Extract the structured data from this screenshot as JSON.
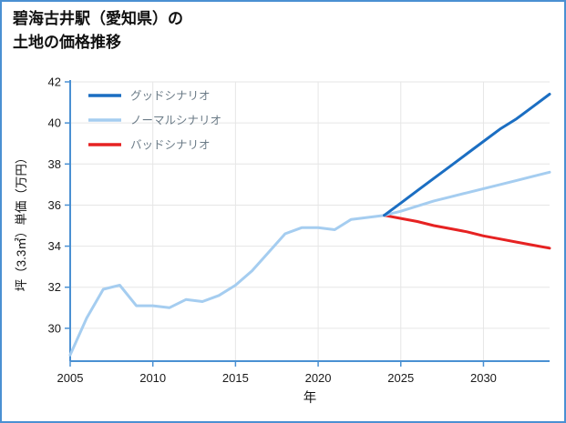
{
  "title": {
    "line1": "碧海古井駅（愛知県）の",
    "line2": "土地の価格推移"
  },
  "chart_data": {
    "type": "line",
    "title": "碧海古井駅（愛知県）の 土地の価格推移",
    "xlabel": "年",
    "ylabel": "坪（3.3㎡）単価（万円）",
    "xlim": [
      2005,
      2034
    ],
    "ylim": [
      28.4,
      42
    ],
    "xticks": [
      2005,
      2010,
      2015,
      2020,
      2025,
      2030
    ],
    "yticks": [
      30,
      32,
      34,
      36,
      38,
      40,
      42
    ],
    "grid": true,
    "legend_position": "upper-left",
    "colors": {
      "good": "#1b6ec2",
      "normal": "#a5cdf0",
      "bad": "#e62222",
      "axis": "#4a90d2",
      "frame": "#4a90d2",
      "grid": "#e6e6e6",
      "tick_label": "#1a1a1a",
      "legend_label": "#6b7b87"
    },
    "series": [
      {
        "id": "history",
        "name": "ノーマルシナリオ（実績）",
        "color_key": "normal",
        "x": [
          2005,
          2006,
          2007,
          2008,
          2009,
          2010,
          2011,
          2012,
          2013,
          2014,
          2015,
          2016,
          2017,
          2018,
          2019,
          2020,
          2021,
          2022,
          2023,
          2024
        ],
        "y": [
          28.7,
          30.5,
          31.9,
          32.1,
          31.1,
          31.1,
          31.0,
          31.4,
          31.3,
          31.6,
          32.1,
          32.8,
          33.7,
          34.6,
          34.9,
          34.9,
          34.8,
          35.3,
          35.4,
          35.5
        ]
      },
      {
        "id": "bad",
        "name": "バッドシナリオ",
        "color_key": "bad",
        "x": [
          2024,
          2025,
          2026,
          2027,
          2028,
          2029,
          2030,
          2031,
          2032,
          2033,
          2034
        ],
        "y": [
          35.5,
          35.35,
          35.2,
          35.0,
          34.85,
          34.7,
          34.5,
          34.35,
          34.2,
          34.05,
          33.9
        ]
      },
      {
        "id": "normal",
        "name": "ノーマルシナリオ",
        "color_key": "normal",
        "x": [
          2024,
          2025,
          2026,
          2027,
          2028,
          2029,
          2030,
          2031,
          2032,
          2033,
          2034
        ],
        "y": [
          35.5,
          35.7,
          35.95,
          36.2,
          36.4,
          36.6,
          36.8,
          37.0,
          37.2,
          37.4,
          37.6
        ]
      },
      {
        "id": "good",
        "name": "グッドシナリオ",
        "color_key": "good",
        "x": [
          2024,
          2025,
          2026,
          2027,
          2028,
          2029,
          2030,
          2031,
          2032,
          2033,
          2034
        ],
        "y": [
          35.5,
          36.1,
          36.7,
          37.3,
          37.9,
          38.5,
          39.1,
          39.7,
          40.2,
          40.8,
          41.4
        ]
      }
    ],
    "legend": [
      {
        "label": "グッドシナリオ",
        "color_key": "good"
      },
      {
        "label": "ノーマルシナリオ",
        "color_key": "normal"
      },
      {
        "label": "バッドシナリオ",
        "color_key": "bad"
      }
    ]
  }
}
